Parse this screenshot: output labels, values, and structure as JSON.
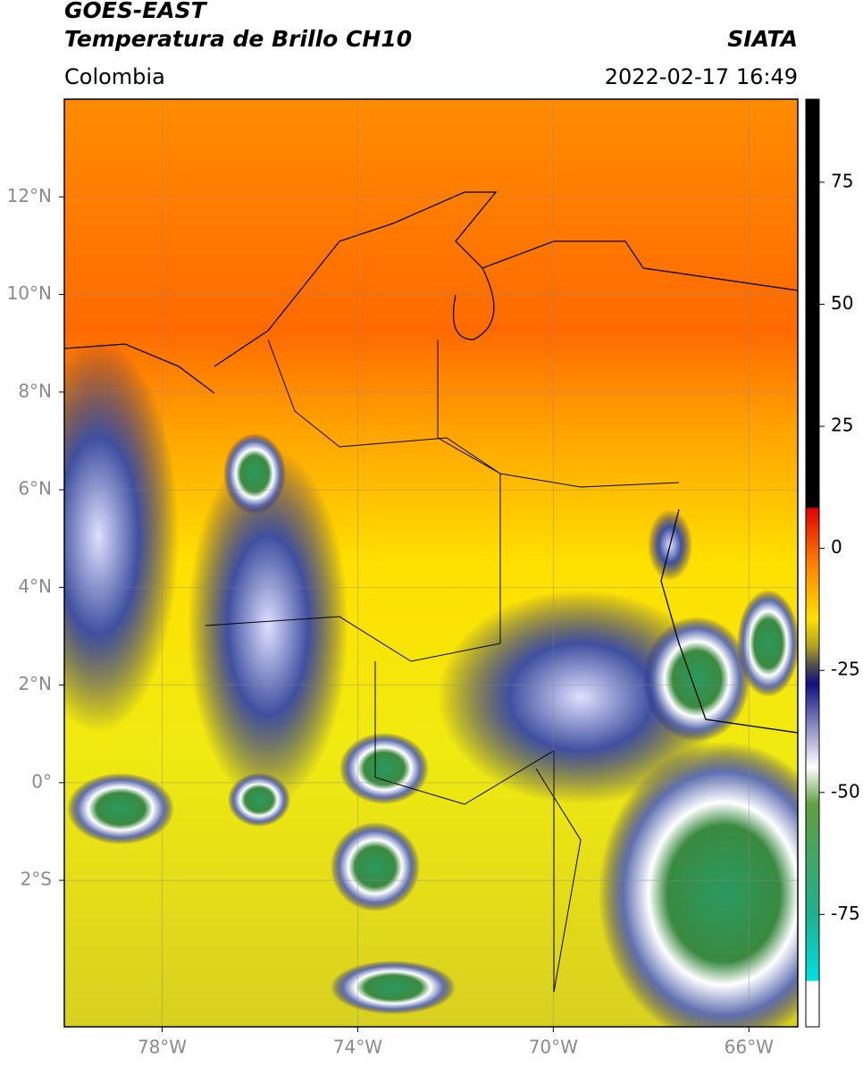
{
  "header": {
    "title": "GOES-EAST",
    "subtitle": "Temperatura de Brillo CH10",
    "region": "Colombia",
    "source": "SIATA",
    "datetime": "2022-02-17 16:49"
  },
  "map": {
    "lon_range": [
      -80,
      -65
    ],
    "lat_range": [
      -5,
      14
    ],
    "lon_ticks": [
      {
        "value": -78,
        "label": "78°W"
      },
      {
        "value": -74,
        "label": "74°W"
      },
      {
        "value": -70,
        "label": "70°W"
      },
      {
        "value": -66,
        "label": "66°W"
      }
    ],
    "lat_ticks": [
      {
        "value": 12,
        "label": "12°N"
      },
      {
        "value": 10,
        "label": "10°N"
      },
      {
        "value": 8,
        "label": "8°N"
      },
      {
        "value": 6,
        "label": "6°N"
      },
      {
        "value": 4,
        "label": "4°N"
      },
      {
        "value": 2,
        "label": "2°N"
      },
      {
        "value": 0,
        "label": "0°"
      },
      {
        "value": -2,
        "label": "2°S"
      }
    ]
  },
  "colorbar": {
    "range": [
      -98,
      92
    ],
    "ticks": [
      75,
      50,
      25,
      0,
      -25,
      -50,
      -75
    ]
  }
}
